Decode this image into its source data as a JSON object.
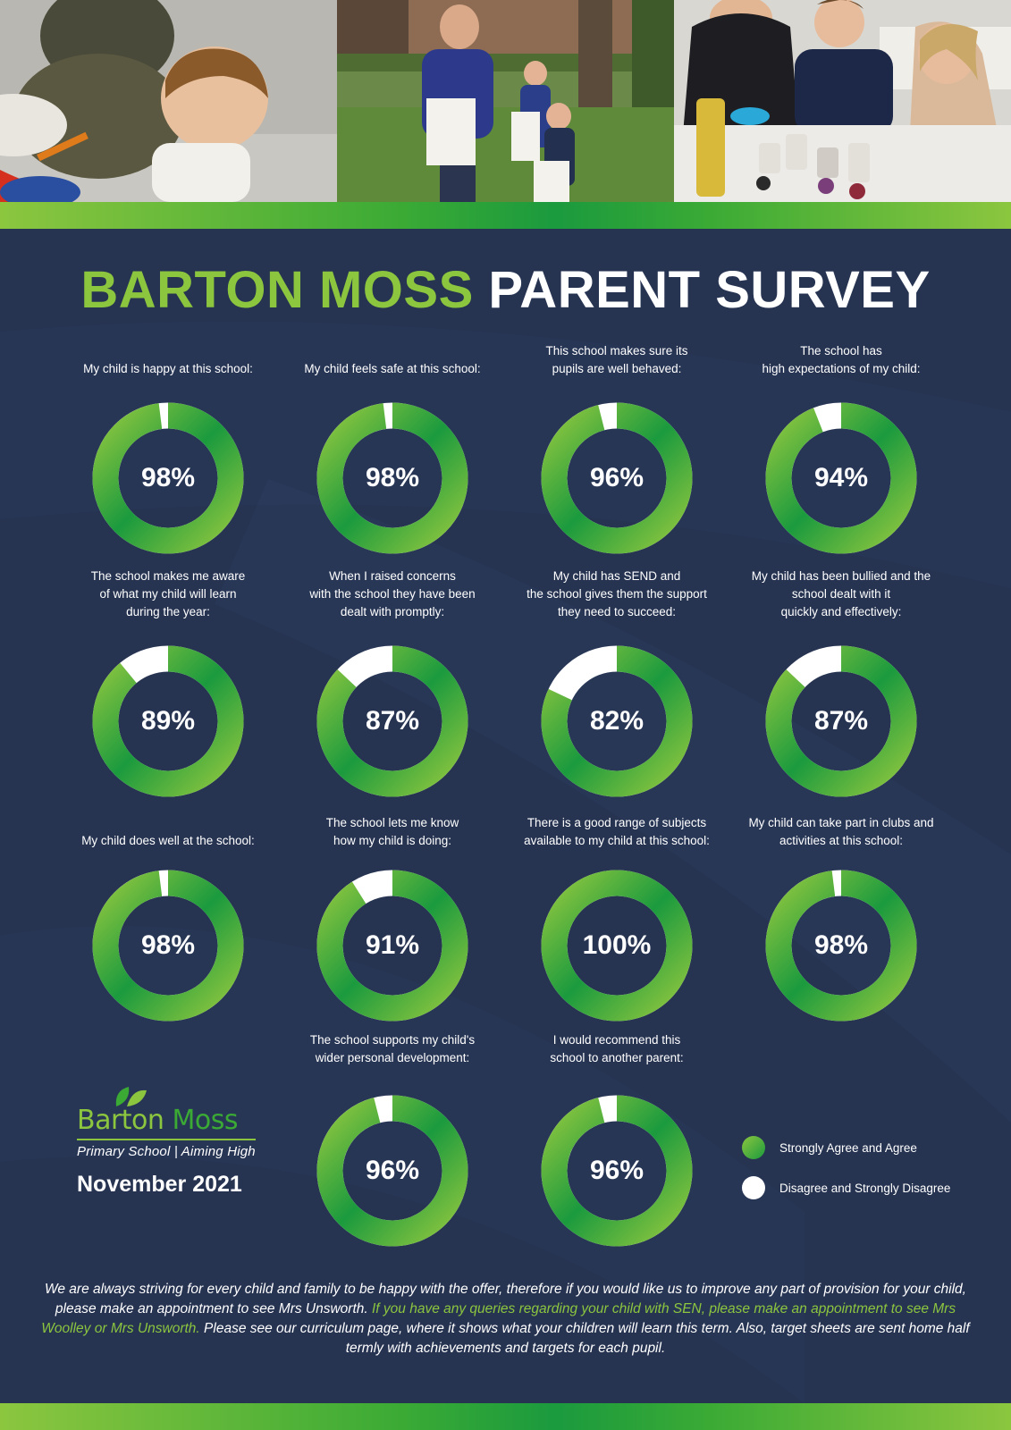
{
  "header": {
    "title_part1": "BARTON MOSS",
    "title_part2": "PARENT SURVEY"
  },
  "photos": [
    {
      "name": "child-painting-photo"
    },
    {
      "name": "outdoor-bags-photo"
    },
    {
      "name": "craft-activity-photo"
    }
  ],
  "chart_data": {
    "type": "donut",
    "unit": "%",
    "items": [
      {
        "label": "My child is happy at this school:",
        "value": 98,
        "display": "98%"
      },
      {
        "label": "My child feels safe at this school:",
        "value": 98,
        "display": "98%"
      },
      {
        "label": "This school makes sure its\npupils are well behaved:",
        "value": 96,
        "display": "96%"
      },
      {
        "label": "The school has\nhigh expectations of my child:",
        "value": 94,
        "display": "94%"
      },
      {
        "label": "The school makes me aware\nof what my child will learn\nduring the year:",
        "value": 89,
        "display": "89%"
      },
      {
        "label": "When I raised concerns\nwith the school they have been\ndealt with promptly:",
        "value": 87,
        "display": "87%"
      },
      {
        "label": "My child has SEND and\nthe school gives them the support\nthey need to succeed:",
        "value": 82,
        "display": "82%"
      },
      {
        "label": "My child has been bullied and the\nschool dealt with it\nquickly and effectively:",
        "value": 87,
        "display": "87%"
      },
      {
        "label": "My child does well at the school:",
        "value": 98,
        "display": "98%"
      },
      {
        "label": "The school lets me know\nhow my child is doing:",
        "value": 91,
        "display": "91%"
      },
      {
        "label": "There is a good range of subjects\navailable to my child at this school:",
        "value": 100,
        "display": "100%"
      },
      {
        "label": "My child can take part in clubs and\nactivities at this school:",
        "value": 98,
        "display": "98%"
      },
      {
        "label": "The school supports my child's\nwider personal development:",
        "value": 96,
        "display": "96%"
      },
      {
        "label": "I would recommend this\nschool to another parent:",
        "value": 96,
        "display": "96%"
      }
    ],
    "legend": [
      {
        "label": "Strongly Agree and Agree",
        "color": "#3aaa35"
      },
      {
        "label": "Disagree and Strongly Disagree",
        "color": "#ffffff"
      }
    ],
    "colors": {
      "agree_light": "#8cc63f",
      "agree_dark": "#1b9a3e",
      "disagree": "#ffffff"
    }
  },
  "logo": {
    "word1": "Barton",
    "word2": "Moss",
    "tagline": "Primary School | Aiming High",
    "date": "November 2021"
  },
  "footer": {
    "part1": "We are always striving for every child and family to be happy with the offer, therefore if you would like us to improve any part of provision for your child, please make an appointment to see Mrs Unsworth. ",
    "highlight": "If you have any queries regarding your child with SEN, please make an appointment to see Mrs Woolley or Mrs Unsworth.",
    "part2": " Please see our curriculum page, where it shows what your children will learn this term. Also, target sheets are sent home half termly with achievements and targets for each pupil."
  },
  "colors": {
    "background": "#263351",
    "accent_green": "#8cc63f",
    "dark_green": "#1b9a3e"
  }
}
